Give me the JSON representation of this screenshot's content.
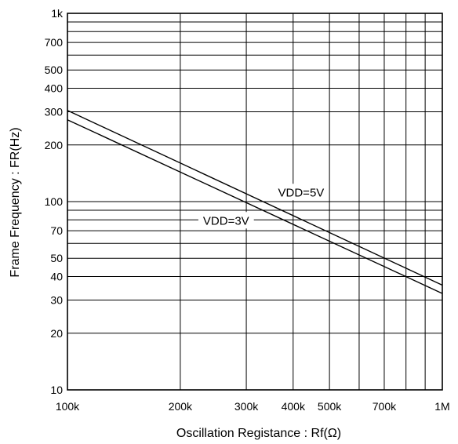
{
  "chart_data": {
    "type": "line",
    "title": "",
    "xlabel": "Oscillation Registance : Rf(Ω)",
    "ylabel": "Frame Frequency : FR(Hz)",
    "x_scale": "log",
    "y_scale": "log",
    "xlim": [
      100000,
      1000000
    ],
    "ylim": [
      10,
      1000
    ],
    "grid": true,
    "x_ticks": [
      {
        "value": 100000,
        "label": "100k"
      },
      {
        "value": 200000,
        "label": "200k"
      },
      {
        "value": 300000,
        "label": "300k"
      },
      {
        "value": 400000,
        "label": "400k"
      },
      {
        "value": 500000,
        "label": "500k"
      },
      {
        "value": 700000,
        "label": "700k"
      },
      {
        "value": 1000000,
        "label": "1M"
      }
    ],
    "x_grid": [
      100000,
      200000,
      300000,
      400000,
      500000,
      600000,
      700000,
      800000,
      900000,
      1000000
    ],
    "y_ticks": [
      {
        "value": 10,
        "label": "10"
      },
      {
        "value": 20,
        "label": "20"
      },
      {
        "value": 30,
        "label": "30"
      },
      {
        "value": 40,
        "label": "40"
      },
      {
        "value": 50,
        "label": "50"
      },
      {
        "value": 70,
        "label": "70"
      },
      {
        "value": 100,
        "label": "100"
      },
      {
        "value": 200,
        "label": "200"
      },
      {
        "value": 300,
        "label": "300"
      },
      {
        "value": 400,
        "label": "400"
      },
      {
        "value": 500,
        "label": "500"
      },
      {
        "value": 700,
        "label": "700"
      },
      {
        "value": 1000,
        "label": "1k"
      }
    ],
    "y_grid": [
      20,
      30,
      40,
      50,
      60,
      70,
      80,
      90,
      100,
      200,
      300,
      400,
      500,
      600,
      700,
      800,
      900
    ],
    "series": [
      {
        "name": "VDD=5V",
        "x": [
          100000,
          1000000
        ],
        "y": [
          305,
          36
        ],
        "label_at": {
          "x": 420000,
          "y": 113
        }
      },
      {
        "name": "VDD=3V",
        "x": [
          100000,
          1000000
        ],
        "y": [
          272,
          32.5
        ],
        "label_at": {
          "x": 265000,
          "y": 80
        }
      }
    ]
  }
}
